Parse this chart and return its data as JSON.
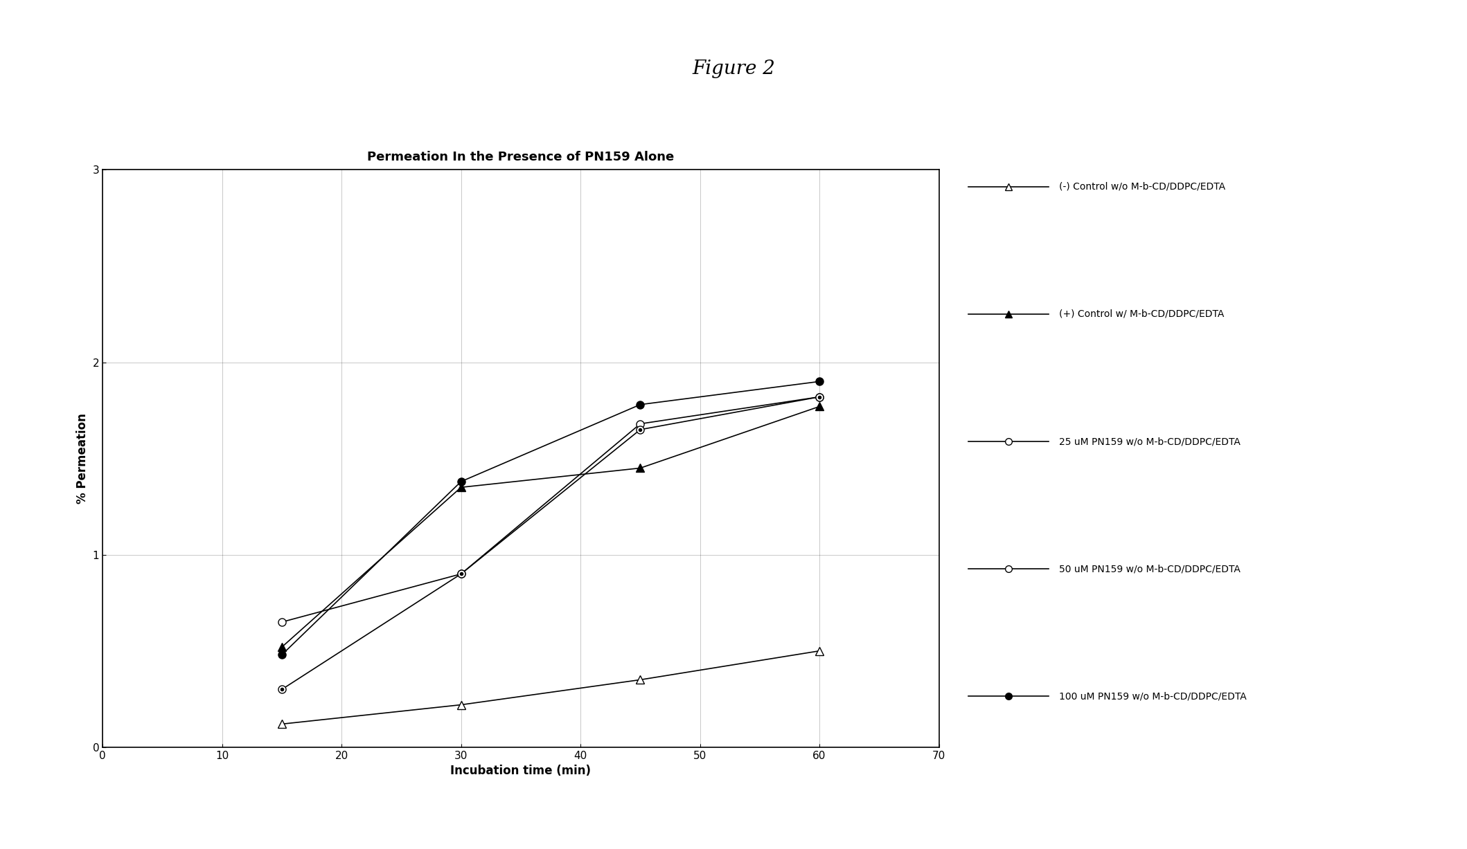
{
  "title": "Permeation In the Presence of PN159 Alone",
  "fig_title": "Figure 2",
  "xlabel": "Incubation time (min)",
  "ylabel": "% Permeation",
  "xlim": [
    0,
    70
  ],
  "ylim": [
    0,
    3
  ],
  "xticks": [
    0,
    10,
    20,
    30,
    40,
    50,
    60,
    70
  ],
  "yticks": [
    0,
    1,
    2,
    3
  ],
  "series": [
    {
      "label": "(-) Control w/o M-b-CD/DDPC/EDTA",
      "x": [
        15,
        30,
        45,
        60
      ],
      "y": [
        0.12,
        0.22,
        0.35,
        0.5
      ],
      "marker": "^",
      "linestyle": "-",
      "color": "#000000",
      "markersize": 8,
      "markerfacecolor": "white",
      "linewidth": 1.2
    },
    {
      "label": "(+) Control w/ M-b-CD/DDPC/EDTA",
      "x": [
        15,
        30,
        45,
        60
      ],
      "y": [
        0.52,
        1.35,
        1.45,
        1.77
      ],
      "marker": "^",
      "linestyle": "-",
      "color": "#000000",
      "markersize": 8,
      "markerfacecolor": "#000000",
      "linewidth": 1.2
    },
    {
      "label": "25 uM PN159 w/o M-b-CD/DDPC/EDTA",
      "x": [
        15,
        30,
        45,
        60
      ],
      "y": [
        0.65,
        0.9,
        1.68,
        1.82
      ],
      "marker": "o",
      "linestyle": "-",
      "color": "#000000",
      "markersize": 8,
      "markerfacecolor": "white",
      "linewidth": 1.2
    },
    {
      "label": "50 uM PN159 w/o M-b-CD/DDPC/EDTA",
      "x": [
        15,
        30,
        45,
        60
      ],
      "y": [
        0.3,
        0.9,
        1.65,
        1.82
      ],
      "marker": "o",
      "linestyle": "-",
      "color": "#000000",
      "markersize": 8,
      "markerfacecolor": "white",
      "linewidth": 1.2
    },
    {
      "label": "100 uM PN159 w/o M-b-CD/DDPC/EDTA",
      "x": [
        15,
        30,
        45,
        60
      ],
      "y": [
        0.48,
        1.38,
        1.78,
        1.9
      ],
      "marker": "o",
      "linestyle": "-",
      "color": "#000000",
      "markersize": 8,
      "markerfacecolor": "#000000",
      "linewidth": 1.2
    }
  ],
  "background_color": "#ffffff",
  "plot_bg_color": "#ffffff",
  "title_fontsize": 13,
  "axis_label_fontsize": 12,
  "tick_fontsize": 11,
  "legend_fontsize": 10,
  "fig_title_fontsize": 20
}
